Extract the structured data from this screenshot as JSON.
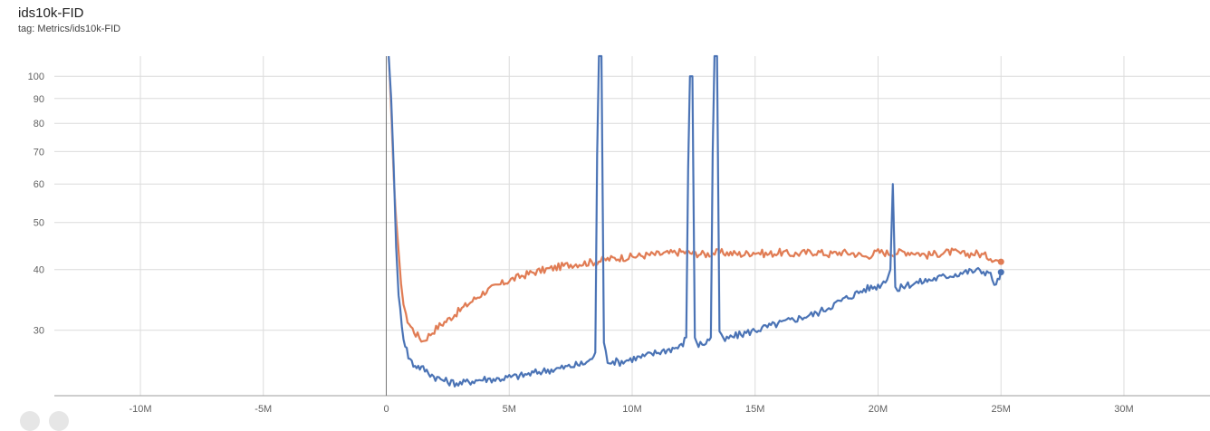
{
  "header": {
    "title": "ids10k-FID",
    "subtitle": "tag: Metrics/ids10k-FID"
  },
  "chart_data": {
    "type": "line",
    "title": "ids10k-FID",
    "xlabel": "",
    "ylabel": "",
    "y_scale": "log",
    "grid": true,
    "xlim": [
      -13500000,
      33500000
    ],
    "ylim": [
      22,
      110
    ],
    "x_ticks": [
      -10000000,
      -5000000,
      0,
      5000000,
      10000000,
      15000000,
      20000000,
      25000000,
      30000000
    ],
    "x_tick_labels": [
      "-10M",
      "-5M",
      "0",
      "5M",
      "10M",
      "15M",
      "20M",
      "25M",
      "30M"
    ],
    "y_ticks": [
      30,
      40,
      50,
      60,
      70,
      80,
      90,
      100
    ],
    "y_tick_labels": [
      "30",
      "40",
      "50",
      "60",
      "70",
      "80",
      "90",
      "100"
    ],
    "series": [
      {
        "color": "#e07b53",
        "smoothed_color": "#f3c7b4",
        "x": [
          100000,
          200000,
          300000,
          400000,
          500000,
          600000,
          700000,
          800000,
          1000000,
          1200000,
          1500000,
          1800000,
          2100000,
          2500000,
          3000000,
          3500000,
          4000000,
          4500000,
          5000000,
          5500000,
          6000000,
          6500000,
          7000000,
          7500000,
          8000000,
          8500000,
          9000000,
          9500000,
          10000000,
          10500000,
          11000000,
          11500000,
          12000000,
          12500000,
          13000000,
          13500000,
          14000000,
          14500000,
          15000000,
          15500000,
          16000000,
          16500000,
          17000000,
          17500000,
          18000000,
          18500000,
          19000000,
          19500000,
          20000000,
          20500000,
          21000000,
          21500000,
          22000000,
          22500000,
          23000000,
          23500000,
          24000000,
          24500000,
          25000000
        ],
        "y": [
          110,
          85,
          62,
          50,
          43,
          38,
          34,
          32,
          30.5,
          29.5,
          28.5,
          29.5,
          30.5,
          31.5,
          33,
          34.5,
          36,
          37,
          38,
          38.8,
          39.5,
          40,
          40.5,
          41,
          41.2,
          41.5,
          42,
          42.3,
          42.5,
          42.8,
          43,
          43.2,
          43.5,
          43.2,
          43,
          43.4,
          43.2,
          43,
          43.5,
          43,
          43.4,
          43,
          43.3,
          43.5,
          43,
          43.4,
          43.2,
          42.5,
          43.5,
          43.2,
          43.5,
          43.4,
          42.8,
          43.2,
          43.5,
          43,
          43.2,
          42.5,
          41.5
        ]
      },
      {
        "color": "#4a72b4",
        "smoothed_color": "#bcd0ea",
        "x": [
          100000,
          200000,
          300000,
          400000,
          500000,
          700000,
          900000,
          1100000,
          1500000,
          2000000,
          2500000,
          3000000,
          3500000,
          4000000,
          4500000,
          5000000,
          5500000,
          6000000,
          6500000,
          7000000,
          7500000,
          8000000,
          8300000,
          8500000,
          8650000,
          8750000,
          8850000,
          9000000,
          9500000,
          10000000,
          10500000,
          11000000,
          11500000,
          12000000,
          12200000,
          12350000,
          12450000,
          12550000,
          12700000,
          13000000,
          13200000,
          13350000,
          13450000,
          13550000,
          13700000,
          14000000,
          14500000,
          15000000,
          15500000,
          16000000,
          16500000,
          17000000,
          17500000,
          18000000,
          18500000,
          19000000,
          19500000,
          20000000,
          20300000,
          20500000,
          20600000,
          20700000,
          20800000,
          21000000,
          21500000,
          22000000,
          22500000,
          23000000,
          23500000,
          24000000,
          24500000,
          24800000,
          25000000
        ],
        "y": [
          110,
          90,
          65,
          45,
          35,
          29,
          26.5,
          25.5,
          25,
          24,
          23.5,
          23.3,
          23.6,
          23.8,
          23.8,
          24,
          24.2,
          24.5,
          24.8,
          25,
          25.3,
          25.6,
          26,
          27,
          110,
          110,
          28,
          26,
          25.8,
          26.2,
          26.5,
          27,
          27.4,
          27.8,
          29,
          100,
          100,
          29,
          28,
          28.3,
          29,
          110,
          110,
          30,
          28.5,
          29,
          29.5,
          30,
          30.5,
          31,
          31.5,
          32,
          32.5,
          33.5,
          34.5,
          35.5,
          36.5,
          37,
          38,
          40,
          60,
          37,
          36,
          37,
          37.5,
          38,
          38.5,
          39,
          39.5,
          39.8,
          39.5,
          37,
          39.5
        ]
      }
    ]
  }
}
